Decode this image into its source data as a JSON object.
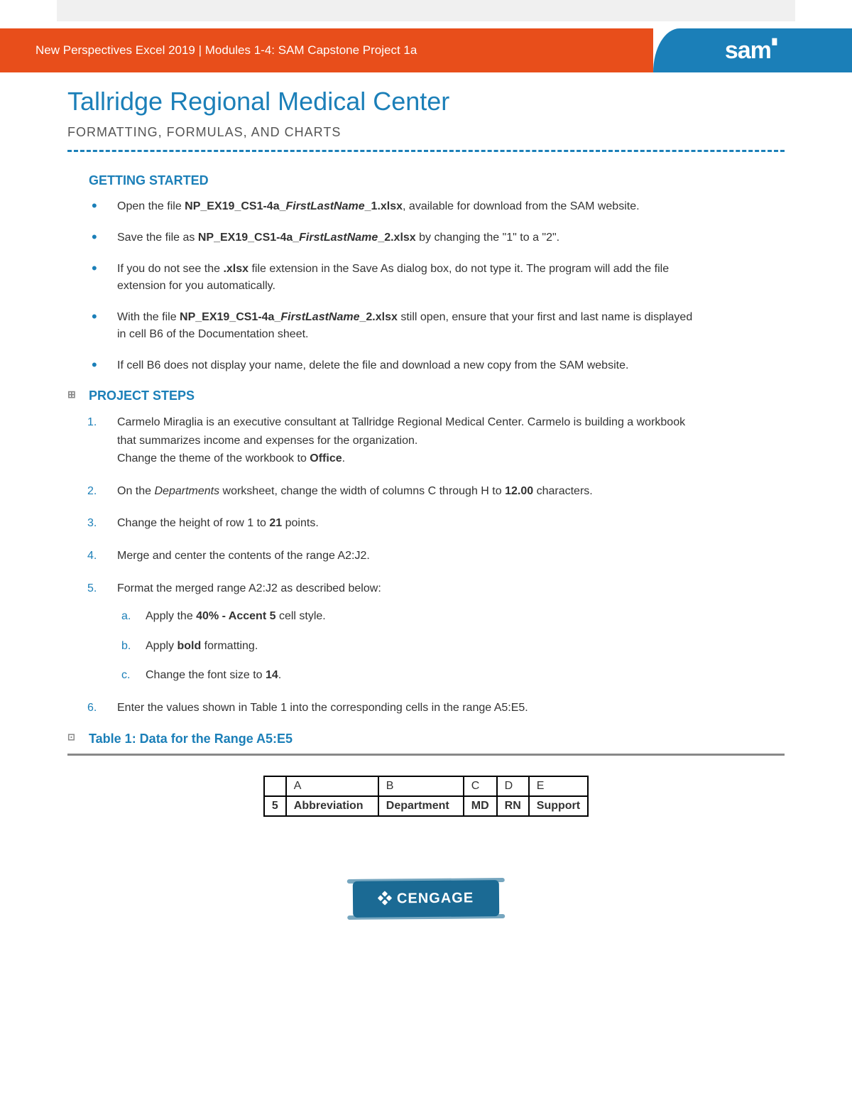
{
  "header": {
    "breadcrumb": "New Perspectives Excel 2019 | Modules 1-4: SAM Capstone Project 1a",
    "logo_text": "sam",
    "logo_sup": "▘"
  },
  "title": "Tallridge Regional Medical Center",
  "subtitle": "FORMATTING, FORMULAS, AND CHARTS",
  "sections": {
    "getting_started": {
      "heading": "GETTING STARTED",
      "items": [
        "Open the file <b>NP_EX19_CS1-4a_<i>FirstLastName</i>_1.xlsx</b>, available for download from the SAM website.",
        "Save the file as <b>NP_EX19_CS1-4a_<i>FirstLastName</i>_2.xlsx</b> by changing the \"1\" to a \"2\".",
        "If you do not see the <b>.xlsx</b> file extension in the Save As dialog box, do not type it. The program will add the file extension for you automatically.",
        "With the file <b>NP_EX19_CS1-4a_<i>FirstLastName</i>_2.xlsx</b> still open, ensure that your first and last name is displayed in cell B6 of the Documentation sheet.",
        "If cell B6 does not display your name, delete the file and download a new copy from the SAM website."
      ]
    },
    "project_steps": {
      "heading": "PROJECT STEPS",
      "marker": "⊞",
      "steps": [
        {
          "html": "Carmelo Miraglia is an executive consultant at Tallridge Regional Medical Center. Carmelo is building a workbook that summarizes income and expenses for the organization.<br>Change the theme of the workbook to <b>Office</b>."
        },
        {
          "html": "On the <i>Departments</i> worksheet, change the width of columns C through H to <b>12.00</b> characters."
        },
        {
          "html": "Change the height of row 1 to <b>21</b> points."
        },
        {
          "html": "Merge and center the contents of the range A2:J2."
        },
        {
          "html": "Format the merged range A2:J2 as described below:",
          "sub": [
            "Apply the <b>40% - Accent 5</b> cell style.",
            "Apply <b>bold</b> formatting.",
            "Change the font size to <b>14</b>."
          ]
        },
        {
          "html": "Enter the values shown in Table 1 into the corresponding cells in the range A5:E5."
        }
      ]
    }
  },
  "table": {
    "caption": "Table 1: Data for the Range A5:E5",
    "marker": "⊡",
    "columns": [
      "",
      "A",
      "B",
      "C",
      "D",
      "E"
    ],
    "rows": [
      [
        "5",
        "Abbreviation",
        "Department",
        "MD",
        "RN",
        "Support"
      ]
    ],
    "col_widths": [
      "30px",
      "130px",
      "120px",
      "40px",
      "40px",
      "80px"
    ]
  },
  "footer": {
    "brand": "CENGAGE"
  },
  "colors": {
    "orange": "#e84e1b",
    "blue": "#1b7fb8",
    "cengage": "#1b6a94"
  }
}
